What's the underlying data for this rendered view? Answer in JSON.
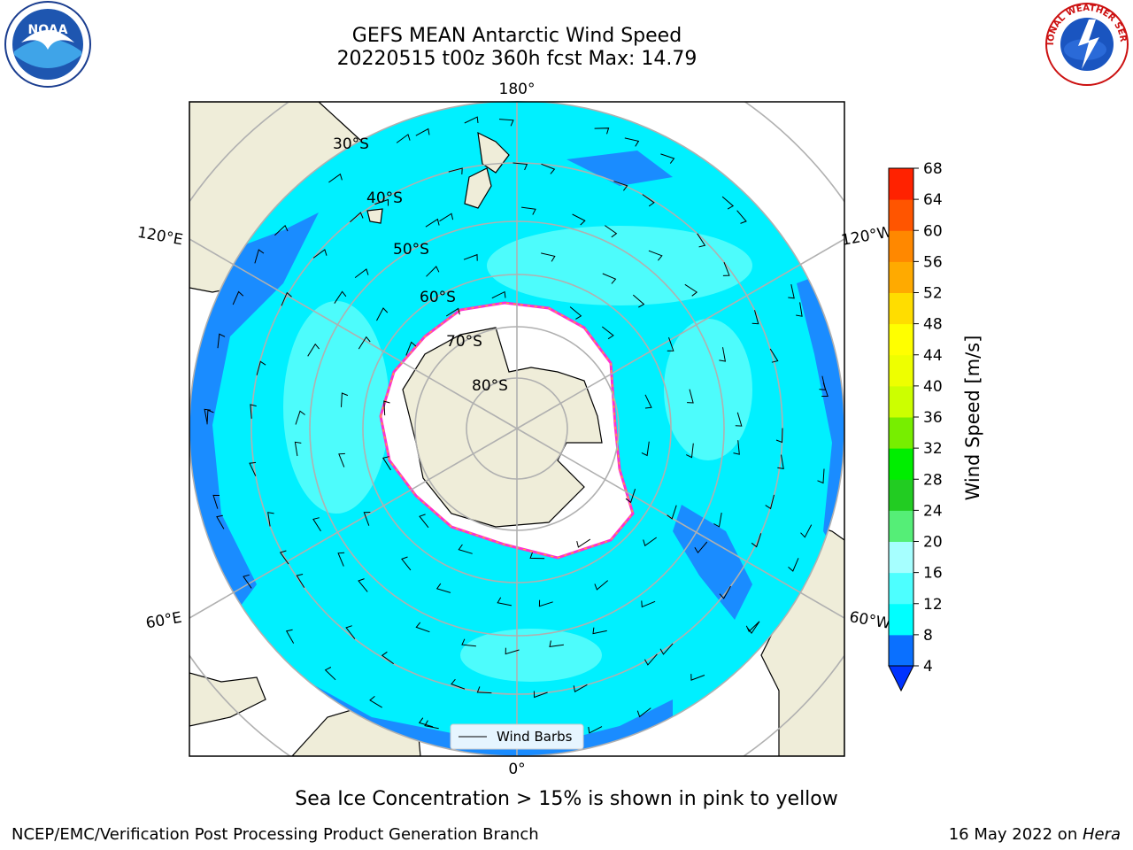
{
  "header": {
    "title_line1": "GEFS MEAN Antarctic Wind Speed",
    "title_line2": "20220515 t00z 360h fcst   Max: 14.79"
  },
  "logos": {
    "noaa_text": "NOAA",
    "nws_text": "NATIONAL WEATHER SERVICE"
  },
  "map": {
    "projection": "south-polar-stereographic",
    "longitude_labels": {
      "top": "180°",
      "bottom": "0°",
      "upper_left": "120°E",
      "upper_right": "120°W",
      "lower_left": "60°E",
      "lower_right": "60°W"
    },
    "latitude_labels": [
      "30°S",
      "40°S",
      "50°S",
      "60°S",
      "70°S",
      "80°S"
    ],
    "legend_label": "Wind Barbs",
    "colors": {
      "ocean_4_8": "#1a8cff",
      "ocean_8_12": "#00f0ff",
      "ocean_12_16": "#4dfcfc",
      "land": "#efedd9",
      "sea_ice": "#ffffff",
      "ice_edge_pink": "#ff33cc",
      "ice_edge_yellow": "#ffcc00",
      "graticule": "#b0b0b0"
    }
  },
  "colorbar": {
    "label": "Wind Speed [m/s]",
    "ticks": [
      "4",
      "8",
      "12",
      "16",
      "20",
      "24",
      "28",
      "32",
      "36",
      "40",
      "44",
      "48",
      "52",
      "56",
      "60",
      "64",
      "68"
    ],
    "colors": [
      "#0a70ff",
      "#00ffff",
      "#4dffff",
      "#a6ffff",
      "#55ee77",
      "#22cc22",
      "#00ee00",
      "#77ee00",
      "#ccff00",
      "#eeff00",
      "#ffff00",
      "#ffdd00",
      "#ffaa00",
      "#ff8800",
      "#ff5500",
      "#ff2200"
    ],
    "under_color": "#0033ff"
  },
  "caption": "Sea Ice Concentration > 15% is shown in pink to yellow",
  "footer": {
    "left": "NCEP/EMC/Verification Post Processing Product Generation Branch",
    "right_date": "16 May 2022 on ",
    "right_machine": "Hera"
  }
}
